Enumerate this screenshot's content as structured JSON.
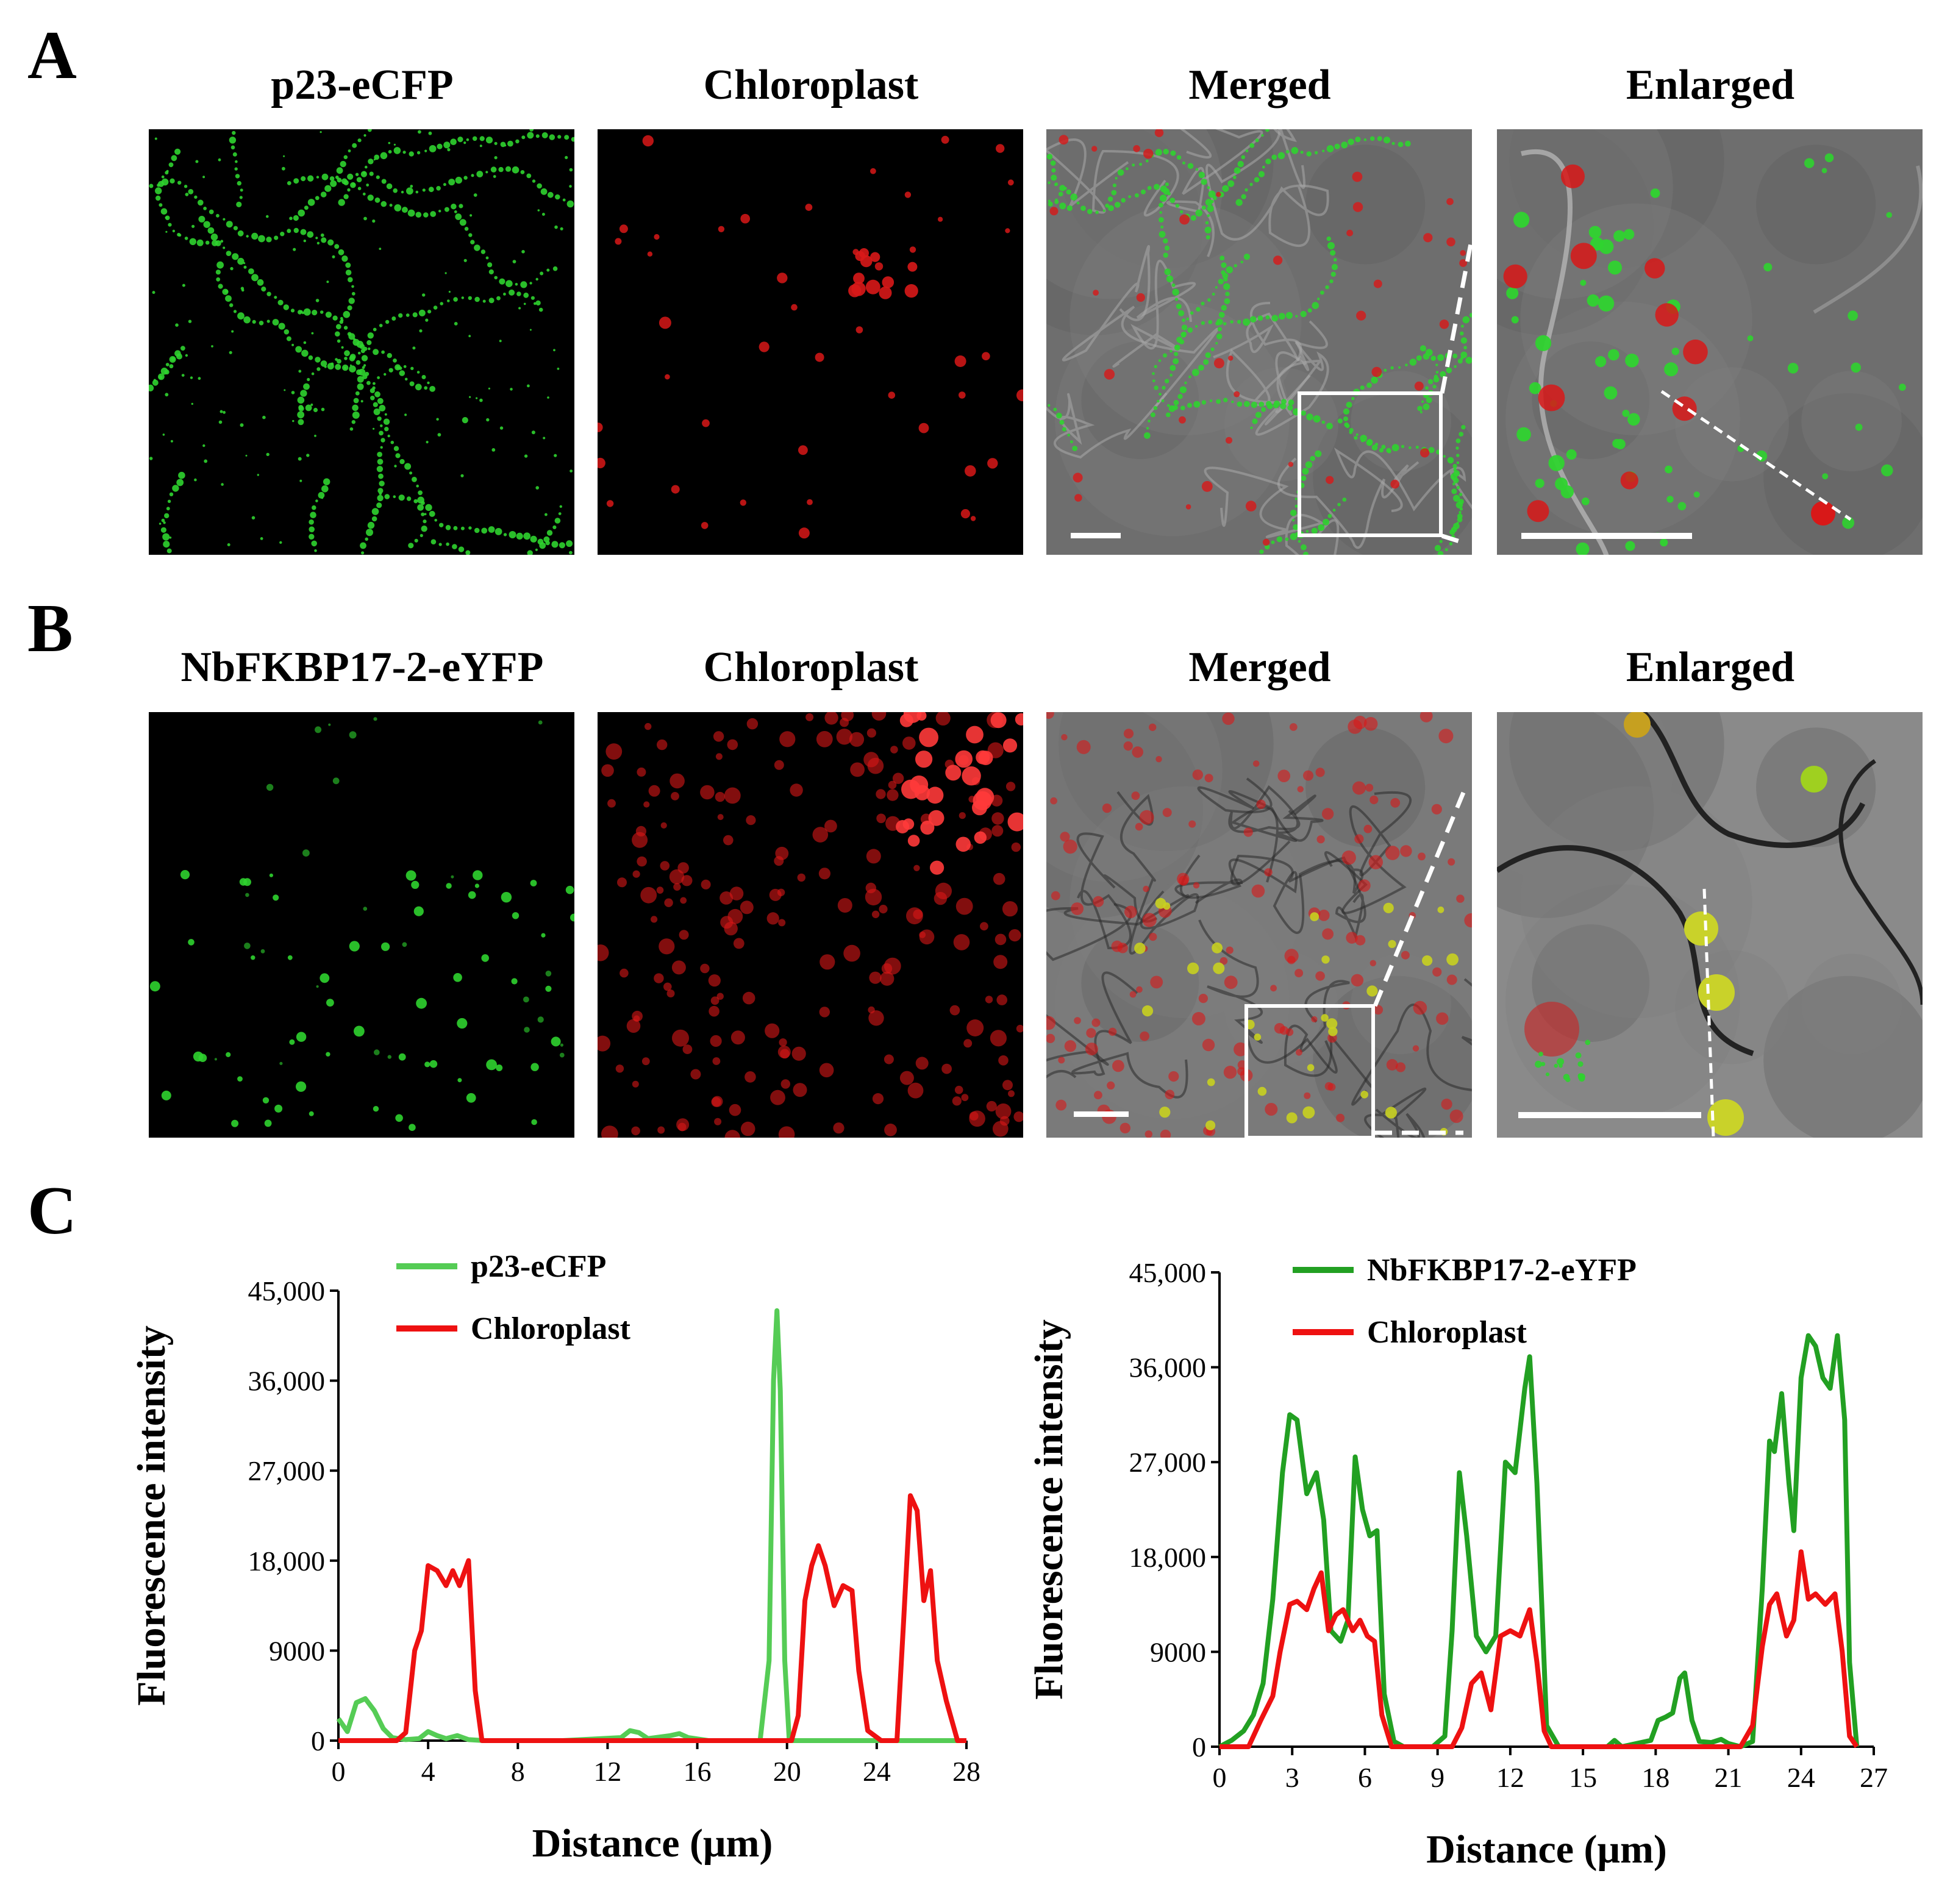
{
  "panels": {
    "A": {
      "letter": "A",
      "titles": [
        "p23-eCFP",
        "Chloroplast",
        "Merged",
        "Enlarged"
      ]
    },
    "B": {
      "letter": "B",
      "titles": [
        "NbFKBP17-2-eYFP",
        "Chloroplast",
        "Merged",
        "Enlarged"
      ]
    },
    "C": {
      "letter": "C"
    }
  },
  "colors": {
    "green_series": "#22a022",
    "green_light": "#55cc55",
    "red_series": "#ee1111",
    "micro_green": "#2fd32f",
    "micro_red": "#d81818",
    "merged_bg": "#6e6e6e"
  },
  "chart_data": [
    {
      "type": "line",
      "xlabel": "Distance (μm)",
      "ylabel": "Fluorescence intensity",
      "xlim": [
        0,
        28
      ],
      "ylim": [
        0,
        45000
      ],
      "xticks": [
        "0",
        "4",
        "8",
        "12",
        "16",
        "20",
        "24",
        "28"
      ],
      "yticks": [
        "0",
        "9000",
        "18,000",
        "27,000",
        "36,000",
        "45,000"
      ],
      "legend_position": "top-left",
      "series": [
        {
          "name": "p23-eCFP",
          "color": "#55cc55",
          "points": [
            [
              0,
              2200
            ],
            [
              0.4,
              900
            ],
            [
              0.8,
              3800
            ],
            [
              1.2,
              4200
            ],
            [
              1.6,
              3000
            ],
            [
              2.0,
              1200
            ],
            [
              2.4,
              300
            ],
            [
              3.0,
              100
            ],
            [
              3.6,
              200
            ],
            [
              4.0,
              900
            ],
            [
              4.4,
              500
            ],
            [
              4.8,
              200
            ],
            [
              5.3,
              500
            ],
            [
              5.8,
              100
            ],
            [
              6.5,
              0
            ],
            [
              10,
              0
            ],
            [
              12.6,
              300
            ],
            [
              13.0,
              1000
            ],
            [
              13.4,
              800
            ],
            [
              13.8,
              200
            ],
            [
              14.8,
              500
            ],
            [
              15.2,
              700
            ],
            [
              15.6,
              300
            ],
            [
              16.5,
              0
            ],
            [
              18.8,
              0
            ],
            [
              19.2,
              8000
            ],
            [
              19.4,
              36000
            ],
            [
              19.55,
              43000
            ],
            [
              19.7,
              35000
            ],
            [
              19.9,
              8000
            ],
            [
              20.1,
              0
            ],
            [
              28,
              0
            ]
          ]
        },
        {
          "name": "Chloroplast",
          "color": "#ee1111",
          "points": [
            [
              0,
              0
            ],
            [
              2.6,
              0
            ],
            [
              3.0,
              800
            ],
            [
              3.4,
              9000
            ],
            [
              3.7,
              11000
            ],
            [
              4.0,
              17500
            ],
            [
              4.4,
              17000
            ],
            [
              4.8,
              15500
            ],
            [
              5.1,
              17000
            ],
            [
              5.4,
              15500
            ],
            [
              5.8,
              18000
            ],
            [
              6.1,
              5000
            ],
            [
              6.4,
              0
            ],
            [
              20.2,
              0
            ],
            [
              20.5,
              2500
            ],
            [
              20.8,
              14000
            ],
            [
              21.1,
              17500
            ],
            [
              21.4,
              19500
            ],
            [
              21.7,
              17500
            ],
            [
              22.1,
              13500
            ],
            [
              22.5,
              15500
            ],
            [
              22.9,
              15000
            ],
            [
              23.2,
              7000
            ],
            [
              23.6,
              1000
            ],
            [
              24.2,
              0
            ],
            [
              24.9,
              0
            ],
            [
              25.2,
              12000
            ],
            [
              25.5,
              24500
            ],
            [
              25.8,
              23000
            ],
            [
              26.1,
              14000
            ],
            [
              26.4,
              17000
            ],
            [
              26.7,
              8000
            ],
            [
              27.1,
              4000
            ],
            [
              27.6,
              0
            ],
            [
              28,
              0
            ]
          ]
        }
      ]
    },
    {
      "type": "line",
      "xlabel": "Distance (μm)",
      "ylabel": "Fluorescence intensity",
      "xlim": [
        0,
        27
      ],
      "ylim": [
        0,
        45000
      ],
      "xticks": [
        "0",
        "3",
        "6",
        "9",
        "12",
        "15",
        "18",
        "21",
        "24",
        "27"
      ],
      "yticks": [
        "0",
        "9000",
        "18,000",
        "27,000",
        "36,000",
        "45,000"
      ],
      "legend_position": "top-left",
      "series": [
        {
          "name": "NbFKBP17-2-eYFP",
          "color": "#22a022",
          "points": [
            [
              0,
              0
            ],
            [
              0.5,
              600
            ],
            [
              1.0,
              1500
            ],
            [
              1.4,
              3000
            ],
            [
              1.8,
              6000
            ],
            [
              2.2,
              14000
            ],
            [
              2.6,
              26000
            ],
            [
              2.9,
              31500
            ],
            [
              3.2,
              31000
            ],
            [
              3.6,
              24000
            ],
            [
              4.0,
              26000
            ],
            [
              4.3,
              21500
            ],
            [
              4.6,
              11000
            ],
            [
              5.0,
              10000
            ],
            [
              5.3,
              12000
            ],
            [
              5.6,
              27500
            ],
            [
              5.9,
              22500
            ],
            [
              6.2,
              20000
            ],
            [
              6.5,
              20500
            ],
            [
              6.8,
              5000
            ],
            [
              7.2,
              500
            ],
            [
              7.6,
              0
            ],
            [
              8.8,
              0
            ],
            [
              9.3,
              1000
            ],
            [
              9.6,
              11000
            ],
            [
              9.9,
              26000
            ],
            [
              10.2,
              20000
            ],
            [
              10.6,
              10500
            ],
            [
              11.0,
              9000
            ],
            [
              11.4,
              10500
            ],
            [
              11.8,
              27000
            ],
            [
              12.2,
              26000
            ],
            [
              12.6,
              34000
            ],
            [
              12.8,
              37000
            ],
            [
              13.1,
              25000
            ],
            [
              13.5,
              2000
            ],
            [
              14.0,
              0
            ],
            [
              16.0,
              0
            ],
            [
              16.3,
              600
            ],
            [
              16.6,
              0
            ],
            [
              17.8,
              600
            ],
            [
              18.1,
              2500
            ],
            [
              18.4,
              2800
            ],
            [
              18.7,
              3200
            ],
            [
              19.0,
              6500
            ],
            [
              19.2,
              7000
            ],
            [
              19.5,
              2500
            ],
            [
              19.8,
              500
            ],
            [
              20.3,
              400
            ],
            [
              20.7,
              700
            ],
            [
              21.0,
              300
            ],
            [
              21.5,
              0
            ],
            [
              22.0,
              500
            ],
            [
              22.4,
              15000
            ],
            [
              22.7,
              29000
            ],
            [
              22.9,
              28000
            ],
            [
              23.2,
              33500
            ],
            [
              23.5,
              25000
            ],
            [
              23.7,
              20500
            ],
            [
              24.0,
              35000
            ],
            [
              24.3,
              39000
            ],
            [
              24.6,
              38000
            ],
            [
              24.9,
              35000
            ],
            [
              25.2,
              34000
            ],
            [
              25.5,
              39000
            ],
            [
              25.8,
              31000
            ],
            [
              26.0,
              8000
            ],
            [
              26.3,
              0
            ]
          ]
        },
        {
          "name": "Chloroplast",
          "color": "#ee1111",
          "points": [
            [
              0,
              0
            ],
            [
              1.2,
              0
            ],
            [
              1.7,
              2500
            ],
            [
              2.2,
              4800
            ],
            [
              2.5,
              9000
            ],
            [
              2.9,
              13500
            ],
            [
              3.2,
              13800
            ],
            [
              3.6,
              13000
            ],
            [
              3.9,
              15000
            ],
            [
              4.2,
              16500
            ],
            [
              4.5,
              11000
            ],
            [
              4.8,
              12500
            ],
            [
              5.1,
              13000
            ],
            [
              5.5,
              11000
            ],
            [
              5.8,
              12000
            ],
            [
              6.1,
              10500
            ],
            [
              6.4,
              10000
            ],
            [
              6.7,
              3000
            ],
            [
              7.1,
              0
            ],
            [
              9.6,
              0
            ],
            [
              10.0,
              1800
            ],
            [
              10.4,
              6000
            ],
            [
              10.8,
              7000
            ],
            [
              11.2,
              3500
            ],
            [
              11.6,
              10500
            ],
            [
              12.0,
              11000
            ],
            [
              12.4,
              10500
            ],
            [
              12.8,
              13000
            ],
            [
              13.1,
              8000
            ],
            [
              13.4,
              1500
            ],
            [
              13.7,
              0
            ],
            [
              21.5,
              0
            ],
            [
              22.0,
              2000
            ],
            [
              22.4,
              9500
            ],
            [
              22.7,
              13500
            ],
            [
              23.0,
              14500
            ],
            [
              23.4,
              10500
            ],
            [
              23.7,
              12000
            ],
            [
              24.0,
              18500
            ],
            [
              24.3,
              14000
            ],
            [
              24.6,
              14500
            ],
            [
              25.0,
              13500
            ],
            [
              25.4,
              14500
            ],
            [
              25.7,
              9000
            ],
            [
              26.0,
              1000
            ],
            [
              26.3,
              0
            ]
          ]
        }
      ]
    }
  ]
}
